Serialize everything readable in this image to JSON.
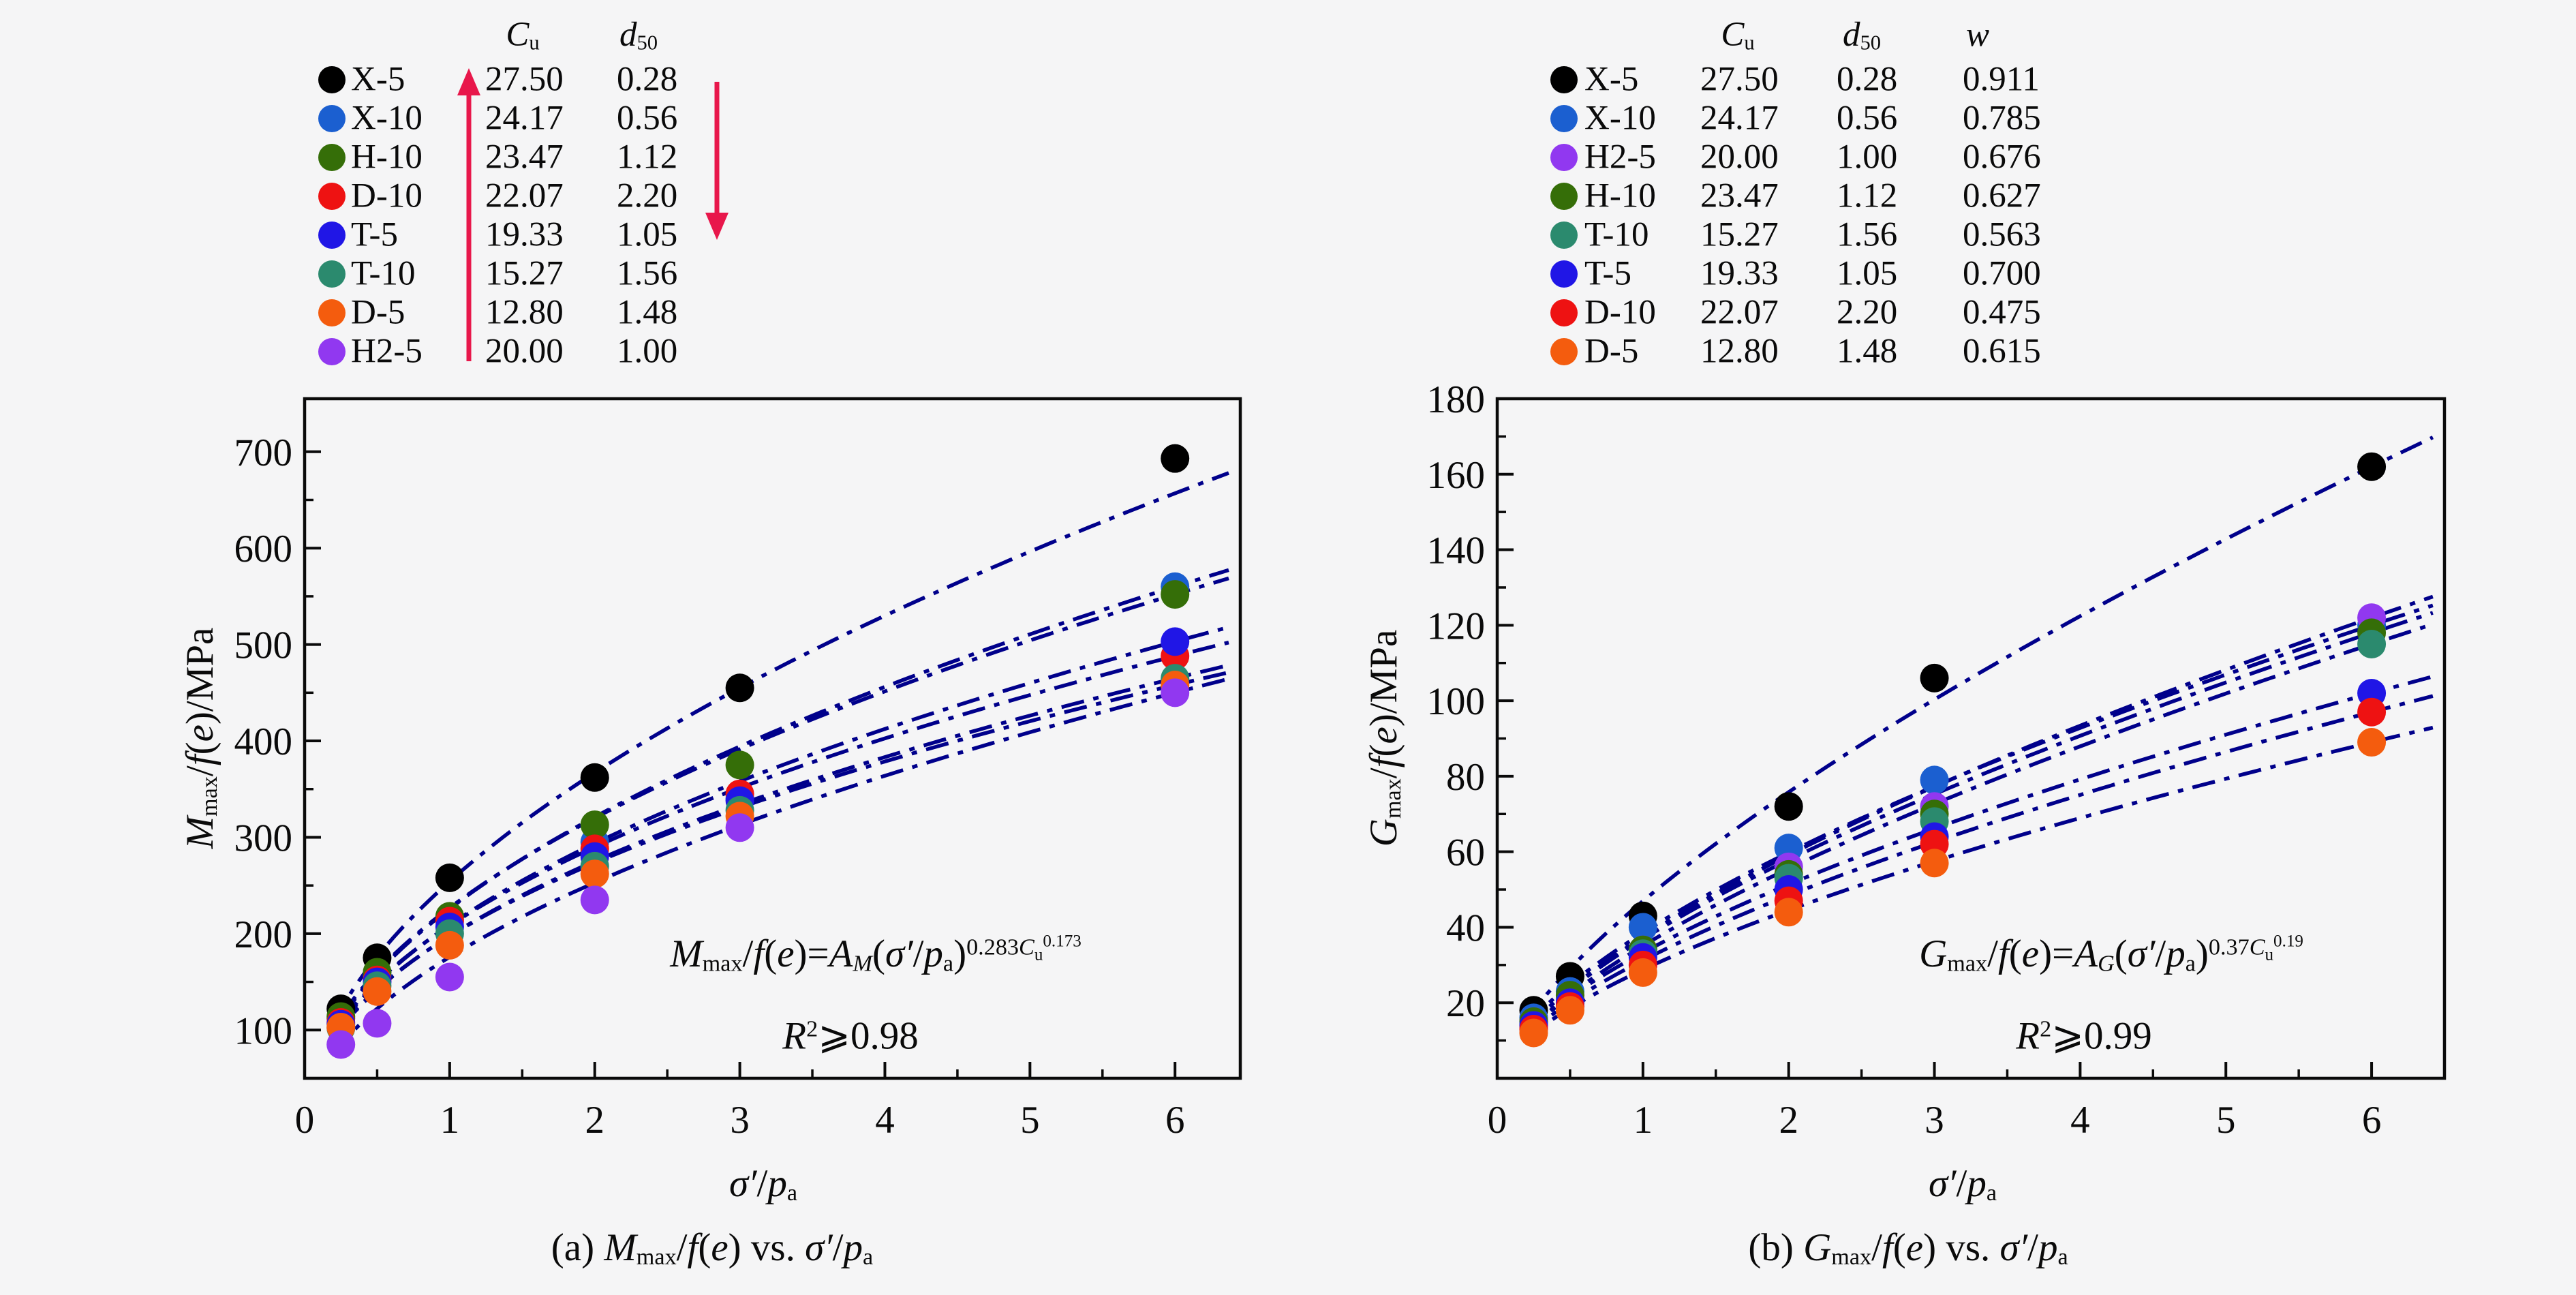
{
  "page": {
    "background": "#f5f5f6",
    "ink": "#0a0a0a"
  },
  "legend_left": {
    "headers": {
      "cu": [
        [
          "i",
          "C"
        ],
        [
          "sub",
          "u"
        ]
      ],
      "d50": [
        [
          "i",
          "d"
        ],
        [
          "sub",
          "50"
        ]
      ]
    },
    "arrow_up_color": "#e8174b",
    "arrow_down_color": "#e8174b",
    "rows": [
      {
        "name": "X-5",
        "color": "#000000",
        "cu": "27.50",
        "d50": "0.28"
      },
      {
        "name": "X-10",
        "color": "#1b5fd0",
        "cu": "24.17",
        "d50": "0.56"
      },
      {
        "name": "H-10",
        "color": "#356e08",
        "cu": "23.47",
        "d50": "1.12"
      },
      {
        "name": "D-10",
        "color": "#ee1212",
        "cu": "22.07",
        "d50": "2.20"
      },
      {
        "name": "T-5",
        "color": "#2016e6",
        "cu": "19.33",
        "d50": "1.05"
      },
      {
        "name": "T-10",
        "color": "#2b8a6e",
        "cu": "15.27",
        "d50": "1.56"
      },
      {
        "name": "D-5",
        "color": "#f45c0e",
        "cu": "12.80",
        "d50": "1.48"
      },
      {
        "name": "H2-5",
        "color": "#9138f0",
        "cu": "20.00",
        "d50": "1.00"
      }
    ]
  },
  "legend_right": {
    "headers": {
      "cu": [
        [
          "i",
          "C"
        ],
        [
          "sub",
          "u"
        ]
      ],
      "d50": [
        [
          "i",
          "d"
        ],
        [
          "sub",
          "50"
        ]
      ],
      "w": [
        [
          "i",
          "w"
        ]
      ]
    },
    "rows": [
      {
        "name": "X-5",
        "color": "#000000",
        "cu": "27.50",
        "d50": "0.28",
        "w": "0.911"
      },
      {
        "name": "X-10",
        "color": "#1b5fd0",
        "cu": "24.17",
        "d50": "0.56",
        "w": "0.785"
      },
      {
        "name": "H2-5",
        "color": "#9138f0",
        "cu": "20.00",
        "d50": "1.00",
        "w": "0.676"
      },
      {
        "name": "H-10",
        "color": "#356e08",
        "cu": "23.47",
        "d50": "1.12",
        "w": "0.627"
      },
      {
        "name": "T-10",
        "color": "#2b8a6e",
        "cu": "15.27",
        "d50": "1.56",
        "w": "0.563"
      },
      {
        "name": "T-5",
        "color": "#2016e6",
        "cu": "19.33",
        "d50": "1.05",
        "w": "0.700"
      },
      {
        "name": "D-10",
        "color": "#ee1212",
        "cu": "22.07",
        "d50": "2.20",
        "w": "0.475"
      },
      {
        "name": "D-5",
        "color": "#f45c0e",
        "cu": "12.80",
        "d50": "1.48",
        "w": "0.615"
      }
    ]
  },
  "chart_data": [
    {
      "type": "scatter",
      "panel": "a",
      "x": [
        0.25,
        0.5,
        1,
        2,
        3,
        6
      ],
      "xlim": [
        0,
        6.45
      ],
      "ylim": [
        50,
        755
      ],
      "xticks": [
        0,
        1,
        2,
        3,
        4,
        5,
        6
      ],
      "yticks": [
        100,
        200,
        300,
        400,
        500,
        600,
        700
      ],
      "extra_minor_y": [],
      "grid": false,
      "legend_position": "top-left-outside",
      "fit_color": "#00008b",
      "series": [
        {
          "name": "X-5",
          "color": "#000000",
          "values": [
            122,
            175,
            258,
            362,
            455,
            693
          ],
          "fit_index": 4
        },
        {
          "name": "X-10",
          "color": "#1b5fd0",
          "values": [
            112,
            157,
            215,
            295,
            340,
            560
          ]
        },
        {
          "name": "H-10",
          "color": "#356e08",
          "values": [
            114,
            160,
            218,
            313,
            375,
            552
          ]
        },
        {
          "name": "D-10",
          "color": "#ee1212",
          "values": [
            108,
            152,
            213,
            288,
            345,
            488
          ]
        },
        {
          "name": "T-5",
          "color": "#2016e6",
          "values": [
            106,
            150,
            207,
            280,
            338,
            503
          ]
        },
        {
          "name": "T-10",
          "color": "#2b8a6e",
          "values": [
            102,
            146,
            200,
            270,
            328,
            465
          ]
        },
        {
          "name": "D-5",
          "color": "#f45c0e",
          "values": [
            103,
            140,
            188,
            262,
            322,
            458
          ]
        },
        {
          "name": "H2-5",
          "color": "#9138f0",
          "values": [
            85,
            107,
            155,
            235,
            310,
            450
          ]
        }
      ],
      "ylabel_parts": [
        [
          "i",
          "M"
        ],
        [
          "sub",
          "max"
        ],
        [
          "n",
          "/"
        ],
        [
          "i",
          "f"
        ],
        [
          "n",
          "("
        ],
        [
          "i",
          "e"
        ],
        [
          "n",
          ")/MPa"
        ]
      ],
      "xlabel_parts": [
        [
          "i",
          "σ′"
        ],
        [
          "n",
          "/"
        ],
        [
          "i",
          "p"
        ],
        [
          "sub",
          "a"
        ]
      ],
      "annotation_line1_parts": [
        [
          "i",
          "M"
        ],
        [
          "sub",
          "max"
        ],
        [
          "n",
          "/"
        ],
        [
          "i",
          "f"
        ],
        [
          "n",
          "("
        ],
        [
          "i",
          "e"
        ],
        [
          "n",
          ")="
        ],
        [
          "i",
          "A"
        ],
        [
          "subi",
          "M"
        ],
        [
          "n",
          "("
        ],
        [
          "i",
          "σ′"
        ],
        [
          "n",
          "/"
        ],
        [
          "i",
          "p"
        ],
        [
          "sub",
          "a"
        ],
        [
          "n",
          ")"
        ],
        [
          "x",
          "0.283"
        ],
        [
          "xi",
          "C"
        ],
        [
          "xsub",
          "u"
        ],
        [
          "xsup",
          "0.173"
        ]
      ],
      "annotation_line2_parts": [
        [
          "i",
          "R"
        ],
        [
          "x",
          "2"
        ],
        [
          "n",
          "⩾0.98"
        ]
      ],
      "caption_parts": [
        [
          "n",
          "(a) "
        ],
        [
          "i",
          "M"
        ],
        [
          "sub",
          "max"
        ],
        [
          "n",
          "/"
        ],
        [
          "i",
          "f"
        ],
        [
          "n",
          "("
        ],
        [
          "i",
          "e"
        ],
        [
          "n",
          ") vs. "
        ],
        [
          "i",
          "σ′"
        ],
        [
          "n",
          "/"
        ],
        [
          "i",
          "p"
        ],
        [
          "sub",
          "a"
        ]
      ]
    },
    {
      "type": "scatter",
      "panel": "b",
      "x": [
        0.25,
        0.5,
        1,
        2,
        3,
        6
      ],
      "xlim": [
        0,
        6.5
      ],
      "ylim": [
        0,
        180
      ],
      "xticks": [
        0,
        1,
        2,
        3,
        4,
        5,
        6
      ],
      "yticks": [
        20,
        40,
        60,
        80,
        100,
        120,
        140,
        160,
        180
      ],
      "extra_minor_y": [
        10
      ],
      "grid": false,
      "legend_position": "top-left-outside",
      "fit_color": "#00008b",
      "series": [
        {
          "name": "X-5",
          "color": "#000000",
          "values": [
            18,
            27,
            43,
            72,
            106,
            162
          ]
        },
        {
          "name": "X-10",
          "color": "#1b5fd0",
          "values": [
            16,
            23,
            40,
            61,
            79,
            120
          ]
        },
        {
          "name": "H2-5",
          "color": "#9138f0",
          "values": [
            15,
            21,
            34,
            56,
            72,
            122
          ]
        },
        {
          "name": "H-10",
          "color": "#356e08",
          "values": [
            15,
            22,
            34,
            54,
            70,
            118
          ]
        },
        {
          "name": "T-10",
          "color": "#2b8a6e",
          "values": [
            14,
            20,
            33,
            53,
            68,
            115
          ]
        },
        {
          "name": "T-5",
          "color": "#2016e6",
          "values": [
            14,
            20,
            32,
            50,
            64,
            102
          ]
        },
        {
          "name": "D-10",
          "color": "#ee1212",
          "values": [
            13,
            19,
            30,
            47,
            62,
            97
          ]
        },
        {
          "name": "D-5",
          "color": "#f45c0e",
          "values": [
            12,
            18,
            28,
            44,
            57,
            89
          ]
        }
      ],
      "ylabel_parts": [
        [
          "i",
          "G"
        ],
        [
          "sub",
          "max"
        ],
        [
          "n",
          "/"
        ],
        [
          "i",
          "f"
        ],
        [
          "n",
          "("
        ],
        [
          "i",
          "e"
        ],
        [
          "n",
          ")/MPa"
        ]
      ],
      "xlabel_parts": [
        [
          "i",
          "σ′"
        ],
        [
          "n",
          "/"
        ],
        [
          "i",
          "p"
        ],
        [
          "sub",
          "a"
        ]
      ],
      "annotation_line1_parts": [
        [
          "i",
          "G"
        ],
        [
          "sub",
          "max"
        ],
        [
          "n",
          "/"
        ],
        [
          "i",
          "f"
        ],
        [
          "n",
          "("
        ],
        [
          "i",
          "e"
        ],
        [
          "n",
          ")="
        ],
        [
          "i",
          "A"
        ],
        [
          "subi",
          "G"
        ],
        [
          "n",
          "("
        ],
        [
          "i",
          "σ′"
        ],
        [
          "n",
          "/"
        ],
        [
          "i",
          "p"
        ],
        [
          "sub",
          "a"
        ],
        [
          "n",
          ")"
        ],
        [
          "x",
          "0.37"
        ],
        [
          "xi",
          "C"
        ],
        [
          "xsub",
          "u"
        ],
        [
          "xsup",
          "0.19"
        ]
      ],
      "annotation_line2_parts": [
        [
          "i",
          "R"
        ],
        [
          "x",
          "2"
        ],
        [
          "n",
          "⩾0.99"
        ]
      ],
      "caption_parts": [
        [
          "n",
          "(b) "
        ],
        [
          "i",
          "G"
        ],
        [
          "sub",
          "max"
        ],
        [
          "n",
          "/"
        ],
        [
          "i",
          "f"
        ],
        [
          "n",
          "("
        ],
        [
          "i",
          "e"
        ],
        [
          "n",
          ") vs. "
        ],
        [
          "i",
          "σ′"
        ],
        [
          "n",
          "/"
        ],
        [
          "i",
          "p"
        ],
        [
          "sub",
          "a"
        ]
      ]
    }
  ]
}
